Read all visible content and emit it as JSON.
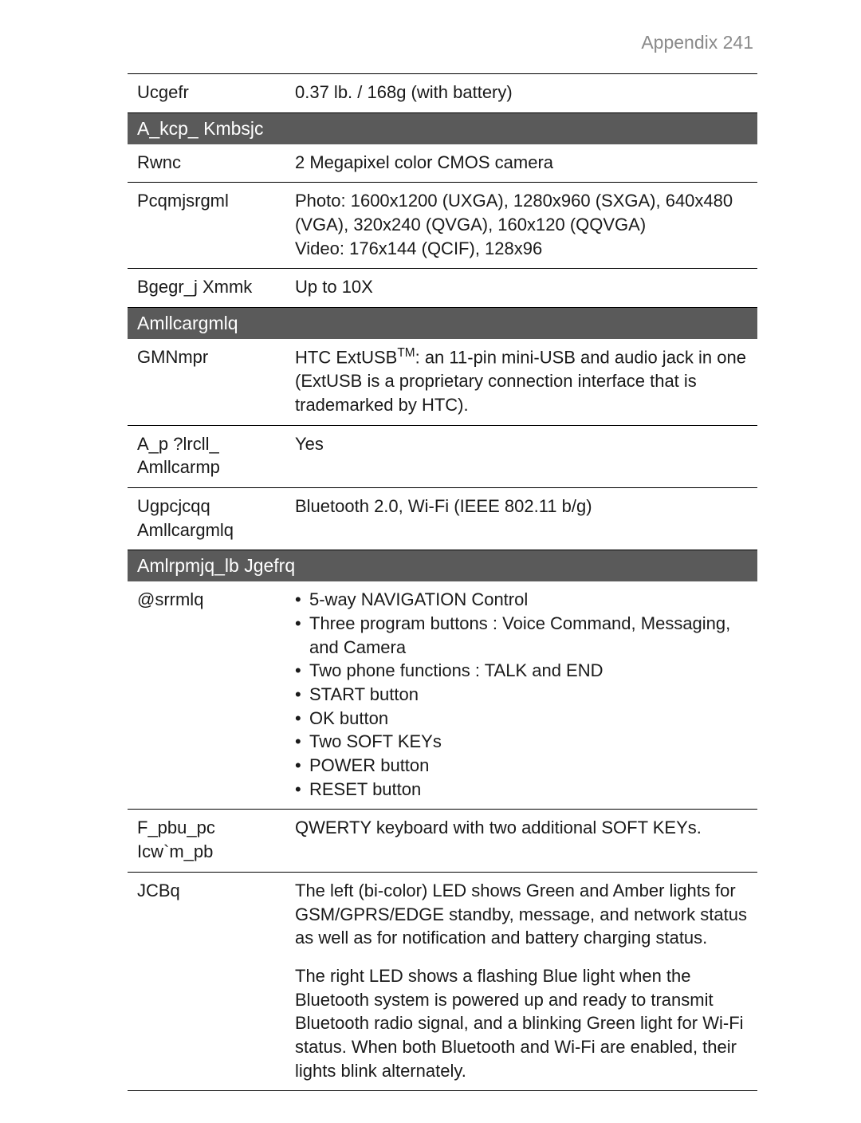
{
  "header": {
    "text": "Appendix  241"
  },
  "rows": {
    "weight": {
      "label": "Ucgefr",
      "value": "0.37 lb. / 168g (with battery)"
    },
    "section_camera": {
      "title": "A_kcp_ Kmbsjc"
    },
    "type": {
      "label": "Rwnc",
      "value": "2 Megapixel color CMOS camera"
    },
    "resolution": {
      "label": "Pcqmjsrgml",
      "line1": "Photo: 1600x1200 (UXGA), 1280x960 (SXGA), 640x480 (VGA), 320x240 (QVGA), 160x120 (QQVGA)",
      "line2": "Video: 176x144 (QCIF), 128x96"
    },
    "zoom": {
      "label": "Bgegr_j Xmmk",
      "value": "Up to 10X"
    },
    "section_connections": {
      "title": "Amllcargmlq"
    },
    "ioport": {
      "label": "GMNmpr",
      "pre": "HTC ExtUSB",
      "tm": "TM",
      "post": ": an 11-pin mini-USB and audio jack in one (ExtUSB is a proprietary connection interface that is trademarked by HTC)."
    },
    "antenna": {
      "label": "A_p ?lrcll_ Amllcarmp",
      "value": "Yes"
    },
    "wireless": {
      "label": "Ugpcjcqq Amllcargmlq",
      "value": "Bluetooth 2.0, Wi-Fi (IEEE 802.11 b/g)"
    },
    "section_controls": {
      "title": "Amlrpmjq_lb Jgefrq"
    },
    "buttons": {
      "label": "@srrmlq",
      "items": [
        "5-way NAVIGATION Control",
        "Three program buttons : Voice Command, Messaging, and Camera",
        "Two phone functions : TALK and END",
        "START button",
        "OK button",
        "Two SOFT KEYs",
        "POWER button",
        "RESET button"
      ]
    },
    "keyboard": {
      "label": "F_pbu_pc Icw`m_pb",
      "value": "QWERTY keyboard with two additional SOFT KEYs."
    },
    "leds": {
      "label": "JCBq",
      "p1": "The left (bi-color) LED shows Green and Amber lights for GSM/GPRS/EDGE standby, message, and network status as well as for notification and battery charging status.",
      "p2": "The right LED shows a flashing Blue light when the Bluetooth system is powered up and ready to transmit Bluetooth radio signal, and a blinking Green light for Wi-Fi status. When both Bluetooth and Wi-Fi are enabled, their lights blink alternately."
    }
  },
  "colors": {
    "section_bg": "#5a5a5a",
    "section_fg": "#ffffff",
    "text": "#1a1a1a",
    "header": "#8a8a8a",
    "rule": "#000000",
    "background": "#ffffff"
  }
}
